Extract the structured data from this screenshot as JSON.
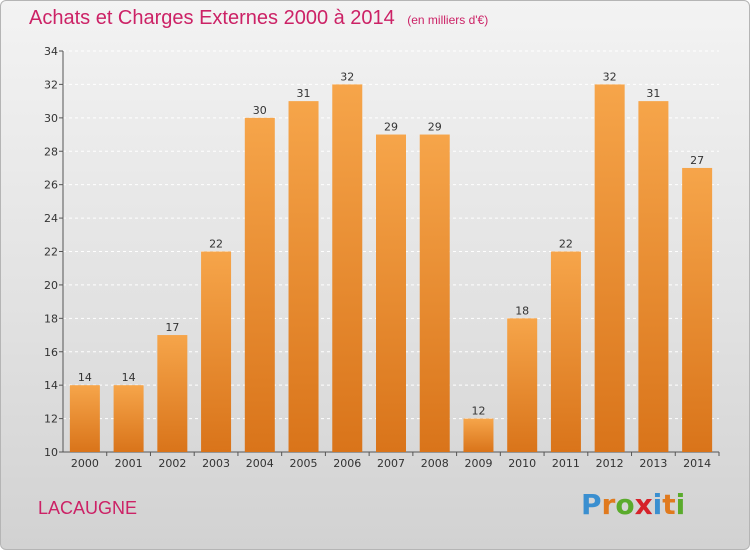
{
  "title": "Achats et Charges Externes 2000 à 2014",
  "unit_note": "(en milliers d'€)",
  "place": "LACAUGNE",
  "brand": {
    "text": "Proxiti",
    "letter_colors": [
      "#3a8fd0",
      "#e07a1e",
      "#5aab2c",
      "#d6222a",
      "#3a8fd0",
      "#e07a1e",
      "#5aab2c"
    ]
  },
  "colors": {
    "bar_top": "#f6a54a",
    "bar_bottom": "#d9741a",
    "title": "#cc2266"
  },
  "chart_data": {
    "type": "bar",
    "categories": [
      "2000",
      "2001",
      "2002",
      "2003",
      "2004",
      "2005",
      "2006",
      "2007",
      "2008",
      "2009",
      "2010",
      "2011",
      "2012",
      "2013",
      "2014"
    ],
    "values": [
      14,
      14,
      17,
      22,
      30,
      31,
      32,
      29,
      29,
      12,
      18,
      22,
      32,
      31,
      27
    ],
    "ylim": [
      10,
      34
    ],
    "yticks": [
      10,
      12,
      14,
      16,
      18,
      20,
      22,
      24,
      26,
      28,
      30,
      32,
      34
    ],
    "grid": true,
    "data_labels": true
  }
}
